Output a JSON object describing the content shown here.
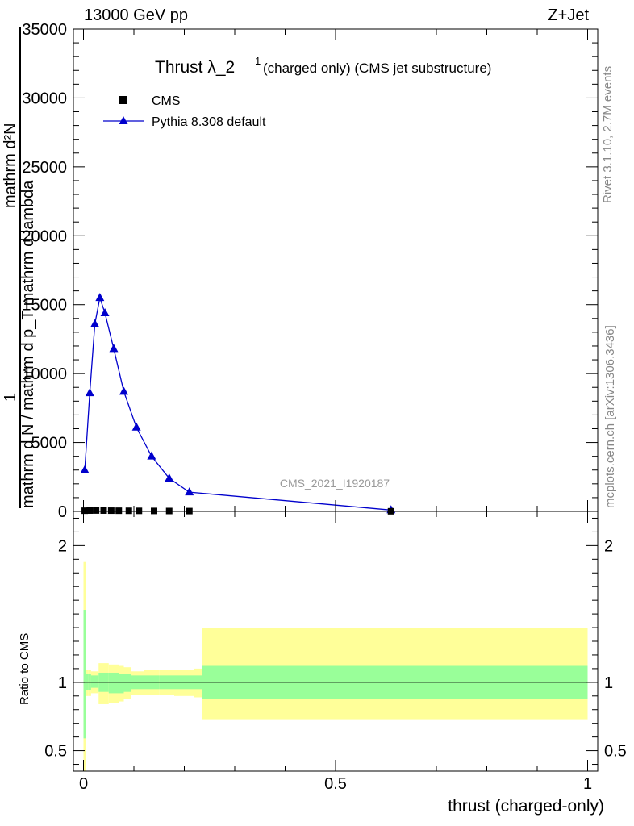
{
  "header": {
    "left": "13000 GeV pp",
    "right": "Z+Jet"
  },
  "side_text": {
    "rivet": "Rivet 3.1.10,  2.7M events",
    "mcplots": "mcplots.cern.ch [arXiv:1306.3436]"
  },
  "chart_data": [
    {
      "type": "line",
      "title": "Thrust λ_2",
      "title_superscript": "1",
      "subtitle": "(charged only) (CMS jet substructure)",
      "watermark": "CMS_2021_I1920187",
      "ylabel_lines": [
        "mathrm d N / mathrm d p_T mathrm d lambda",
        "mathrm d²N",
        "1"
      ],
      "ylim": [
        0,
        35000
      ],
      "xlim": [
        -0.02,
        1.02
      ],
      "yticks": [
        0,
        5000,
        10000,
        15000,
        20000,
        25000,
        30000,
        35000
      ],
      "ytick_labels": [
        "0",
        "5000",
        "10000",
        "15000",
        "20000",
        "25000",
        "30000",
        "35000"
      ],
      "legend_placement": "top-left",
      "series": [
        {
          "name": "CMS",
          "marker": "square",
          "color": "#000000",
          "x": [
            0.0025,
            0.0125,
            0.025,
            0.04,
            0.055,
            0.07,
            0.09,
            0.11,
            0.14,
            0.17,
            0.21,
            0.61
          ],
          "y": [
            50,
            60,
            65,
            60,
            55,
            50,
            45,
            40,
            35,
            30,
            25,
            10
          ]
        },
        {
          "name": "Pythia 8.308 default",
          "marker": "triangle",
          "color": "#0000cc",
          "x": [
            0.0025,
            0.0125,
            0.0225,
            0.0325,
            0.0425,
            0.06,
            0.08,
            0.105,
            0.135,
            0.17,
            0.21,
            0.61
          ],
          "y": [
            3000,
            8600,
            13600,
            15500,
            14400,
            11800,
            8700,
            6100,
            4000,
            2400,
            1400,
            100
          ]
        }
      ]
    },
    {
      "type": "area",
      "ylabel": "Ratio to CMS",
      "xlabel": "thrust (charged-only)",
      "ylim": [
        0.35,
        2.25
      ],
      "xlim": [
        -0.02,
        1.02
      ],
      "yticks": [
        0.5,
        1,
        2
      ],
      "ytick_labels": [
        "0.5",
        "1",
        "2"
      ],
      "xticks": [
        0,
        0.5,
        1
      ],
      "xtick_labels": [
        "0",
        "0.5",
        "1"
      ],
      "reference_line": 1,
      "bands": {
        "edges": [
          0,
          0.005,
          0.01,
          0.015,
          0.03,
          0.05,
          0.07,
          0.08,
          0.095,
          0.12,
          0.15,
          0.18,
          0.22,
          0.235,
          1.0
        ],
        "inner_lo": [
          0.59,
          0.94,
          0.94,
          0.96,
          0.93,
          0.92,
          0.92,
          0.93,
          0.95,
          0.95,
          0.95,
          0.95,
          0.95,
          0.88
        ],
        "inner_hi": [
          1.53,
          1.06,
          1.06,
          1.05,
          1.07,
          1.07,
          1.06,
          1.06,
          1.05,
          1.05,
          1.05,
          1.05,
          1.05,
          1.12
        ],
        "outer_lo": [
          0.35,
          0.9,
          0.9,
          0.92,
          0.84,
          0.85,
          0.86,
          0.88,
          0.91,
          0.91,
          0.91,
          0.9,
          0.89,
          0.73
        ],
        "outer_hi": [
          1.88,
          1.09,
          1.09,
          1.08,
          1.14,
          1.13,
          1.12,
          1.11,
          1.08,
          1.09,
          1.09,
          1.09,
          1.1,
          1.4
        ],
        "inner_color": "#99ff99",
        "outer_color": "#ffff99"
      }
    }
  ]
}
